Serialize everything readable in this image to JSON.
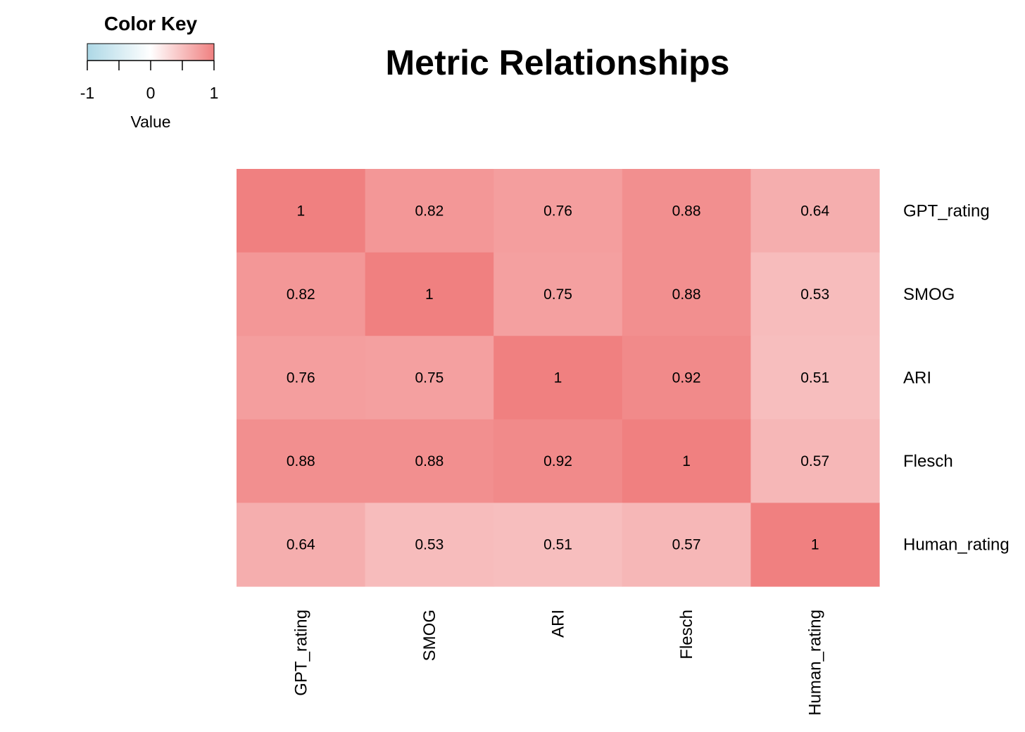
{
  "chart_data": {
    "type": "heatmap",
    "title": "Metric Relationships",
    "rows": [
      "GPT_rating",
      "SMOG",
      "ARI",
      "Flesch",
      "Human_rating"
    ],
    "columns": [
      "GPT_rating",
      "SMOG",
      "ARI",
      "Flesch",
      "Human_rating"
    ],
    "values": [
      [
        1,
        0.82,
        0.76,
        0.88,
        0.64
      ],
      [
        0.82,
        1,
        0.75,
        0.88,
        0.53
      ],
      [
        0.76,
        0.75,
        1,
        0.92,
        0.51
      ],
      [
        0.88,
        0.88,
        0.92,
        1,
        0.57
      ],
      [
        0.64,
        0.53,
        0.51,
        0.57,
        1
      ]
    ],
    "cell_labels": [
      [
        "1",
        "0.82",
        "0.76",
        "0.88",
        "0.64"
      ],
      [
        "0.82",
        "1",
        "0.75",
        "0.88",
        "0.53"
      ],
      [
        "0.76",
        "0.75",
        "1",
        "0.92",
        "0.51"
      ],
      [
        "0.88",
        "0.88",
        "0.92",
        "1",
        "0.57"
      ],
      [
        "0.64",
        "0.53",
        "0.51",
        "0.57",
        "1"
      ]
    ],
    "value_range": [
      -1,
      1
    ],
    "colors": {
      "low": "#add8e6",
      "mid": "#ffffff",
      "high": "#f08080"
    },
    "color_key": {
      "title": "Color Key",
      "label": "Value",
      "ticks": [
        "-1",
        "0",
        "1"
      ],
      "placement": "top-left"
    }
  }
}
